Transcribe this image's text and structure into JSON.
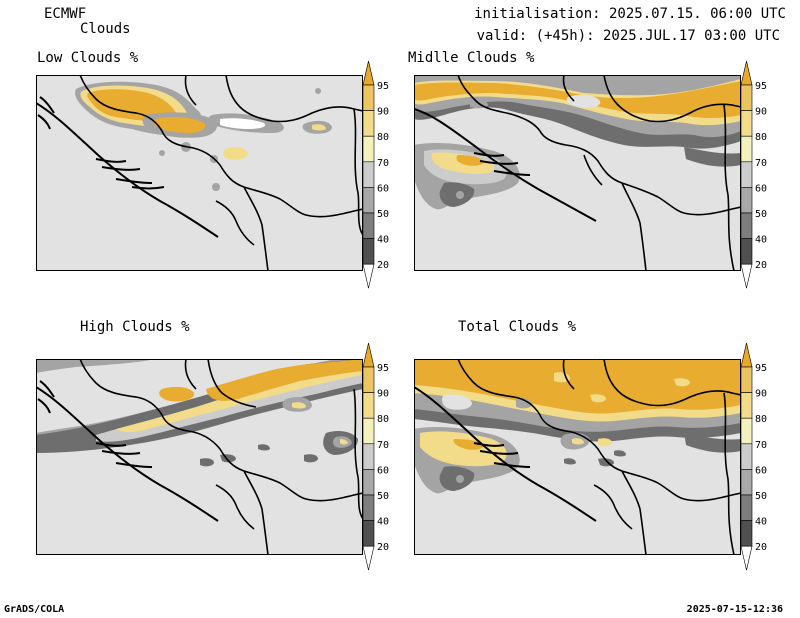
{
  "header": {
    "model": "ECMWF",
    "parameter": "Clouds",
    "init": "initialisation: 2025.07.15. 06:00 UTC",
    "valid": "valid: (+45h): 2025.JUL.17 03:00 UTC"
  },
  "panels": [
    {
      "id": "low",
      "title": "Low Clouds %"
    },
    {
      "id": "middle",
      "title": "Midlle Clouds %"
    },
    {
      "id": "high",
      "title": "High Clouds %"
    },
    {
      "id": "total",
      "title": "Total Clouds %"
    }
  ],
  "colorbar": {
    "levels": [
      "20",
      "40",
      "50",
      "60",
      "70",
      "80",
      "90",
      "95"
    ],
    "colors": [
      "#ffffff",
      "#505050",
      "#7e7e7e",
      "#a8a8a8",
      "#cccccc",
      "#f4f2bc",
      "#f2dc8a",
      "#edc462",
      "#e8a82c"
    ]
  },
  "colors": {
    "land": "#e2e2e2",
    "cloud_dark": "#6e6e6e",
    "cloud_mid": "#a4a4a4",
    "cloud_light": "#f2dc8a",
    "cloud_full": "#e8ac30"
  },
  "footer": {
    "left": "GrADS/COLA",
    "right": "2025-07-15-12:36"
  }
}
